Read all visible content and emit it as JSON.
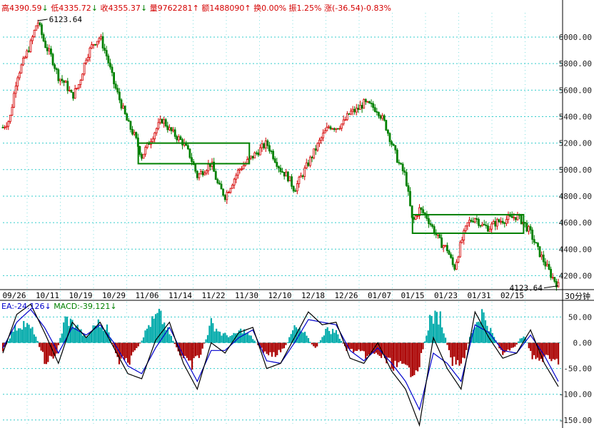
{
  "header": {
    "high_label": "高",
    "high_value": "4390.59",
    "low_label": "低",
    "low_value": "4335.72",
    "close_label": "收",
    "close_value": "4355.37",
    "vol_label": "量",
    "vol_value": "9762281",
    "amount_label": "额",
    "amount_value": "1488090",
    "turnover_label": "换",
    "turnover_value": "0.00%",
    "amplitude_label": "振",
    "amplitude_value": "1.25%",
    "change_label": "涨",
    "change_value": "(-36.54)-0.83%",
    "arrow_down": "↓",
    "arrow_up": "↑"
  },
  "macd_header": {
    "dea_label": "EA:",
    "dea_value": "-24.126",
    "dea_arrow": "↓",
    "macd_label": "MACD:",
    "macd_value": "-39.121",
    "macd_arrow": "↓"
  },
  "period_label": "30分钟",
  "annotations": {
    "peak_label": "6123.64",
    "trough_label": "4123.64"
  },
  "colors": {
    "up": "#d40000",
    "down": "#008000",
    "grid": "#33cccc",
    "macd_pos": "#00aaaa",
    "macd_neg": "#aa0000",
    "dif": "#000000",
    "dea": "#0000cc",
    "box": "#008000"
  },
  "chart_data": [
    {
      "type": "candlestick",
      "title": "",
      "x_tick_labels": [
        "09/26",
        "10/11",
        "10/19",
        "10/29",
        "11/06",
        "11/14",
        "11/22",
        "11/30",
        "12/10",
        "12/18",
        "12/26",
        "01/07",
        "01/15",
        "01/23",
        "01/31",
        "02/15"
      ],
      "y_tick_labels": [
        "4200.00",
        "4400.00",
        "4600.00",
        "4800.00",
        "5000.00",
        "5200.00",
        "5400.00",
        "5600.00",
        "5800.00",
        "6000.00"
      ],
      "ylim": [
        4100,
        6140
      ],
      "grid": true,
      "price_path": [
        [
          0,
          5320
        ],
        [
          2,
          5380
        ],
        [
          4,
          5700
        ],
        [
          6,
          5820
        ],
        [
          8,
          5950
        ],
        [
          10,
          6123.64
        ],
        [
          12,
          5950
        ],
        [
          14,
          5850
        ],
        [
          16,
          5700
        ],
        [
          18,
          5650
        ],
        [
          20,
          5550
        ],
        [
          22,
          5650
        ],
        [
          24,
          5850
        ],
        [
          26,
          5950
        ],
        [
          28,
          6000
        ],
        [
          30,
          5850
        ],
        [
          32,
          5650
        ],
        [
          34,
          5500
        ],
        [
          36,
          5350
        ],
        [
          38,
          5250
        ],
        [
          40,
          5100
        ],
        [
          42,
          5200
        ],
        [
          44,
          5300
        ],
        [
          46,
          5380
        ],
        [
          48,
          5300
        ],
        [
          50,
          5250
        ],
        [
          52,
          5200
        ],
        [
          54,
          5100
        ],
        [
          56,
          4950
        ],
        [
          58,
          5000
        ],
        [
          60,
          5050
        ],
        [
          62,
          4880
        ],
        [
          64,
          4800
        ],
        [
          66,
          4900
        ],
        [
          68,
          5000
        ],
        [
          70,
          5050
        ],
        [
          72,
          5100
        ],
        [
          74,
          5150
        ],
        [
          76,
          5200
        ],
        [
          78,
          5100
        ],
        [
          80,
          5000
        ],
        [
          82,
          4950
        ],
        [
          84,
          4850
        ],
        [
          86,
          4950
        ],
        [
          88,
          5050
        ],
        [
          90,
          5150
        ],
        [
          92,
          5250
        ],
        [
          94,
          5330
        ],
        [
          96,
          5320
        ],
        [
          98,
          5350
        ],
        [
          100,
          5430
        ],
        [
          102,
          5450
        ],
        [
          104,
          5500
        ],
        [
          106,
          5480
        ],
        [
          108,
          5450
        ],
        [
          110,
          5350
        ],
        [
          112,
          5200
        ],
        [
          114,
          5050
        ],
        [
          116,
          4950
        ],
        [
          118,
          4600
        ],
        [
          120,
          4700
        ],
        [
          122,
          4650
        ],
        [
          124,
          4550
        ],
        [
          126,
          4450
        ],
        [
          128,
          4400
        ],
        [
          130,
          4250
        ],
        [
          132,
          4450
        ],
        [
          134,
          4600
        ],
        [
          136,
          4640
        ],
        [
          138,
          4580
        ],
        [
          140,
          4560
        ],
        [
          142,
          4600
        ],
        [
          144,
          4620
        ],
        [
          146,
          4630
        ],
        [
          148,
          4650
        ],
        [
          150,
          4600
        ],
        [
          152,
          4520
        ],
        [
          154,
          4400
        ],
        [
          156,
          4300
        ],
        [
          158,
          4200
        ],
        [
          160,
          4123.64
        ]
      ],
      "range_boxes": [
        {
          "x_from": 39,
          "x_to": 71,
          "y_from": 5045,
          "y_to": 5200
        },
        {
          "x_from": 118,
          "x_to": 150,
          "y_from": 4520,
          "y_to": 4660
        }
      ],
      "peak": {
        "x": 10,
        "y": 6123.64
      },
      "trough": {
        "x": 160,
        "y": 4123.64
      }
    },
    {
      "type": "macd",
      "title": "",
      "y_tick_labels": [
        "50.00",
        "0.00",
        "-50.00",
        "-100.00",
        "-150.00"
      ],
      "ylim": [
        -160,
        70
      ],
      "grid": true,
      "hist_path": [
        [
          0,
          -20
        ],
        [
          3,
          30
        ],
        [
          6,
          45
        ],
        [
          9,
          25
        ],
        [
          12,
          -40
        ],
        [
          15,
          -35
        ],
        [
          18,
          55
        ],
        [
          21,
          40
        ],
        [
          24,
          10
        ],
        [
          27,
          45
        ],
        [
          30,
          35
        ],
        [
          33,
          -40
        ],
        [
          36,
          -45
        ],
        [
          39,
          -10
        ],
        [
          42,
          40
        ],
        [
          45,
          65
        ],
        [
          48,
          20
        ],
        [
          51,
          -25
        ],
        [
          54,
          -55
        ],
        [
          57,
          -25
        ],
        [
          60,
          45
        ],
        [
          63,
          20
        ],
        [
          66,
          15
        ],
        [
          69,
          30
        ],
        [
          72,
          10
        ],
        [
          75,
          -20
        ],
        [
          78,
          -30
        ],
        [
          81,
          -15
        ],
        [
          84,
          35
        ],
        [
          87,
          20
        ],
        [
          90,
          -15
        ],
        [
          93,
          30
        ],
        [
          96,
          25
        ],
        [
          99,
          -15
        ],
        [
          102,
          -20
        ],
        [
          105,
          -30
        ],
        [
          108,
          -25
        ],
        [
          111,
          -45
        ],
        [
          114,
          -55
        ],
        [
          117,
          -65
        ],
        [
          120,
          -50
        ],
        [
          123,
          55
        ],
        [
          126,
          60
        ],
        [
          129,
          -40
        ],
        [
          132,
          -55
        ],
        [
          135,
          25
        ],
        [
          138,
          70
        ],
        [
          141,
          20
        ],
        [
          144,
          -25
        ],
        [
          147,
          -15
        ],
        [
          150,
          20
        ],
        [
          153,
          -40
        ],
        [
          156,
          -35
        ],
        [
          159,
          -45
        ],
        [
          160,
          -40
        ]
      ],
      "dif_path": [
        [
          0,
          -20
        ],
        [
          4,
          55
        ],
        [
          8,
          75
        ],
        [
          12,
          20
        ],
        [
          16,
          -40
        ],
        [
          20,
          40
        ],
        [
          24,
          10
        ],
        [
          28,
          40
        ],
        [
          32,
          -10
        ],
        [
          36,
          -60
        ],
        [
          40,
          -70
        ],
        [
          44,
          5
        ],
        [
          48,
          40
        ],
        [
          52,
          -40
        ],
        [
          56,
          -90
        ],
        [
          60,
          0
        ],
        [
          64,
          -20
        ],
        [
          68,
          20
        ],
        [
          72,
          30
        ],
        [
          76,
          -50
        ],
        [
          80,
          -40
        ],
        [
          84,
          10
        ],
        [
          88,
          60
        ],
        [
          92,
          35
        ],
        [
          96,
          40
        ],
        [
          100,
          -30
        ],
        [
          104,
          -40
        ],
        [
          108,
          0
        ],
        [
          112,
          -55
        ],
        [
          116,
          -90
        ],
        [
          120,
          -160
        ],
        [
          124,
          10
        ],
        [
          128,
          -50
        ],
        [
          132,
          -90
        ],
        [
          136,
          60
        ],
        [
          140,
          10
        ],
        [
          144,
          -30
        ],
        [
          148,
          -20
        ],
        [
          152,
          25
        ],
        [
          156,
          -40
        ],
        [
          160,
          -85
        ]
      ],
      "dea_path": [
        [
          0,
          -10
        ],
        [
          4,
          40
        ],
        [
          8,
          65
        ],
        [
          12,
          30
        ],
        [
          16,
          -20
        ],
        [
          20,
          30
        ],
        [
          24,
          15
        ],
        [
          28,
          35
        ],
        [
          32,
          0
        ],
        [
          36,
          -45
        ],
        [
          40,
          -60
        ],
        [
          44,
          -10
        ],
        [
          48,
          30
        ],
        [
          52,
          -25
        ],
        [
          56,
          -75
        ],
        [
          60,
          -15
        ],
        [
          64,
          -15
        ],
        [
          68,
          10
        ],
        [
          72,
          25
        ],
        [
          76,
          -35
        ],
        [
          80,
          -40
        ],
        [
          84,
          0
        ],
        [
          88,
          45
        ],
        [
          92,
          40
        ],
        [
          96,
          35
        ],
        [
          100,
          -15
        ],
        [
          104,
          -35
        ],
        [
          108,
          -10
        ],
        [
          112,
          -40
        ],
        [
          116,
          -75
        ],
        [
          120,
          -130
        ],
        [
          124,
          -20
        ],
        [
          128,
          -40
        ],
        [
          132,
          -75
        ],
        [
          136,
          35
        ],
        [
          140,
          20
        ],
        [
          144,
          -15
        ],
        [
          148,
          -20
        ],
        [
          152,
          15
        ],
        [
          156,
          -25
        ],
        [
          160,
          -75
        ]
      ],
      "dea_value": -24.126,
      "macd_value": -39.121
    }
  ]
}
